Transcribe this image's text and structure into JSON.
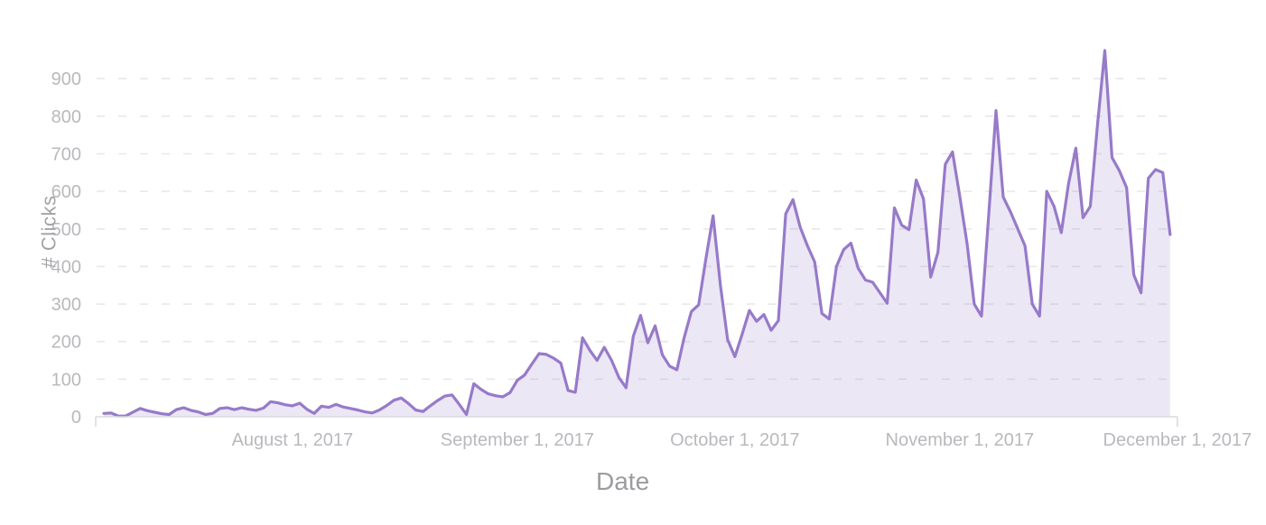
{
  "chart_data": {
    "type": "area",
    "title": "",
    "xlabel": "Date",
    "ylabel": "# Clicks",
    "start_date": "2017-07-06",
    "end_date": "2017-11-30",
    "x_ticks": [
      {
        "label": "August 1, 2017",
        "day": 26
      },
      {
        "label": "September 1, 2017",
        "day": 57
      },
      {
        "label": "October 1, 2017",
        "day": 87
      },
      {
        "label": "November 1, 2017",
        "day": 118
      },
      {
        "label": "December 1, 2017",
        "day": 148
      }
    ],
    "y_ticks": [
      0,
      100,
      200,
      300,
      400,
      500,
      600,
      700,
      800,
      900
    ],
    "ylim": [
      0,
      1010
    ],
    "grid": "dashed-horizontal",
    "legend": "none",
    "series": [
      {
        "name": "# Clicks",
        "values": [
          9,
          10,
          2,
          2,
          12,
          22,
          16,
          12,
          8,
          6,
          19,
          24,
          17,
          13,
          6,
          9,
          22,
          24,
          19,
          24,
          20,
          17,
          23,
          40,
          37,
          32,
          29,
          36,
          20,
          9,
          28,
          25,
          33,
          26,
          22,
          18,
          13,
          10,
          18,
          30,
          44,
          50,
          35,
          18,
          14,
          29,
          43,
          55,
          58,
          33,
          6,
          88,
          73,
          61,
          56,
          53,
          64,
          97,
          111,
          140,
          168,
          166,
          156,
          143,
          70,
          65,
          210,
          177,
          150,
          185,
          150,
          105,
          77,
          215,
          270,
          197,
          242,
          165,
          135,
          125,
          210,
          280,
          298,
          420,
          535,
          350,
          205,
          160,
          220,
          283,
          254,
          272,
          230,
          256,
          540,
          578,
          505,
          455,
          412,
          275,
          260,
          400,
          445,
          462,
          395,
          364,
          358,
          330,
          302,
          556,
          510,
          498,
          630,
          580,
          372,
          438,
          672,
          705,
          588,
          462,
          300,
          268,
          540,
          815,
          585,
          545,
          500,
          455,
          300,
          268,
          600,
          560,
          490,
          620,
          715,
          530,
          560,
          780,
          975,
          690,
          655,
          610,
          378,
          330,
          635,
          658,
          650,
          485
        ]
      }
    ],
    "colors": {
      "line": "#977ac9",
      "fill": "rgba(151,122,201,0.18)",
      "grid": "#e8e8ea",
      "axis": "#dadade",
      "tick_label": "#b9b9bd",
      "axis_title": "#a3a3a7"
    }
  }
}
